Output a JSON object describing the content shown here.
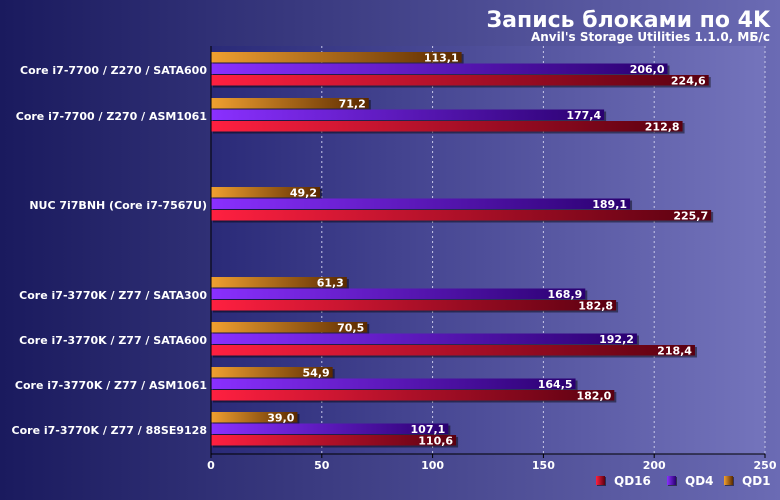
{
  "chart_data": {
    "type": "bar",
    "orientation": "horizontal",
    "title": "Запись блоками по 4K",
    "subtitle": "Anvil's Storage Utilities 1.1.0, МБ/с",
    "categories": [
      "Core i7-7700 / Z270 / SATA600",
      "Core i7-7700 / Z270 / ASM1061",
      "NUC 7i7BNH (Core i7-7567U)",
      "Core i7-3770K / Z77 / SATA300",
      "Core i7-3770K / Z77 / SATA600",
      "Core i7-3770K / Z77 / ASM1061",
      "Core i7-3770K / Z77 / 88SE9128"
    ],
    "series": [
      {
        "name": "QD1",
        "color": "#e07a10",
        "values": [
          113.1,
          71.2,
          49.2,
          61.3,
          70.5,
          54.9,
          39.0
        ],
        "labels": [
          "113,1",
          "71,2",
          "49,2",
          "61,3",
          "70,5",
          "54,9",
          "39,0"
        ]
      },
      {
        "name": "QD4",
        "color": "#6a10d8",
        "values": [
          206.0,
          177.4,
          189.1,
          168.9,
          192.2,
          164.5,
          107.1
        ],
        "labels": [
          "206,0",
          "177,4",
          "189,1",
          "168,9",
          "192,2",
          "164,5",
          "107,1"
        ]
      },
      {
        "name": "QD16",
        "color": "#d81030",
        "values": [
          224.6,
          212.8,
          225.7,
          182.8,
          218.4,
          182.0,
          110.6
        ],
        "labels": [
          "224,6",
          "212,8",
          "225,7",
          "182,8",
          "218,4",
          "182,0",
          "110,6"
        ]
      }
    ],
    "xlim": [
      0,
      250
    ],
    "xticks": [
      "0",
      "50",
      "100",
      "150",
      "200",
      "250"
    ],
    "grid": true,
    "legend_position": "bottom-right",
    "legend_order": [
      "QD16",
      "QD4",
      "QD1"
    ]
  }
}
